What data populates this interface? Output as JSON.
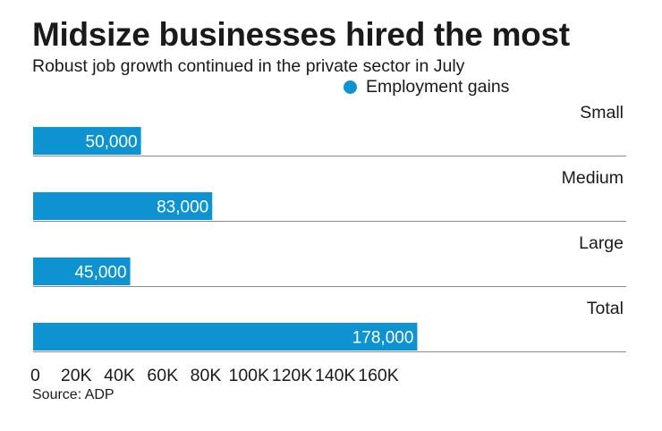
{
  "chart_data": {
    "type": "bar",
    "orientation": "horizontal",
    "title": "Midsize businesses hired the most",
    "subtitle": "Robust job growth continued in the private sector in July",
    "categories": [
      "Small",
      "Medium",
      "Large",
      "Total"
    ],
    "series": [
      {
        "name": "Employment gains",
        "values": [
          50000,
          83000,
          45000,
          178000
        ],
        "value_labels": [
          "50,000",
          "83,000",
          "45,000",
          "178,000"
        ],
        "color": "#0d93d2"
      }
    ],
    "xlim": [
      0,
      180000
    ],
    "xticks": [
      0,
      20000,
      40000,
      60000,
      80000,
      100000,
      120000,
      140000,
      160000
    ],
    "xtick_labels": [
      "0",
      "20K",
      "40K",
      "60K",
      "80K",
      "100K",
      "120K",
      "140K",
      "160K"
    ],
    "legend_position": "top-right",
    "grid": false,
    "source": "Source: ADP"
  },
  "colors": {
    "bar": "#0d93d2",
    "bar_label": "#ffffff",
    "divider": "#8c8c8c",
    "text": "#1a1a1a"
  }
}
